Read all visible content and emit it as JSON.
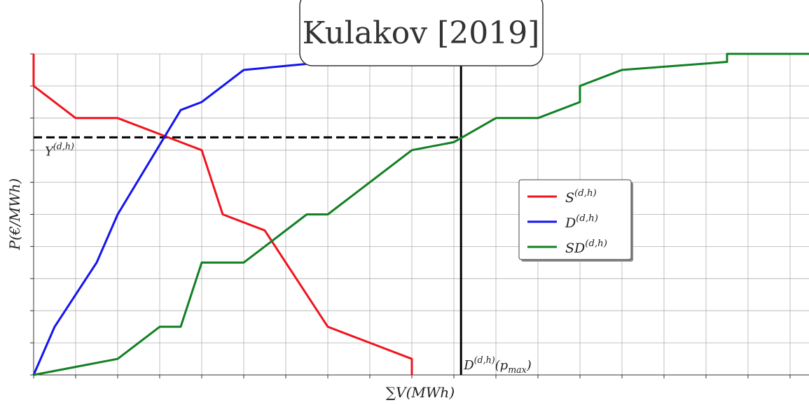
{
  "chart_data": {
    "type": "line",
    "title": "Kulakov [2019]",
    "xlabel": "∑V(MWh)",
    "ylabel": "P(€/MWh)",
    "xlim": [
      0,
      18.45
    ],
    "ylim": [
      0,
      10
    ],
    "xticks": [
      0,
      1,
      2,
      3,
      4,
      5,
      6,
      7,
      8,
      9,
      10,
      11,
      12,
      13,
      14,
      15,
      16,
      17,
      18
    ],
    "yticks": [
      0,
      1,
      2,
      3,
      4,
      5,
      6,
      7,
      8,
      9,
      10
    ],
    "grid": true,
    "legend": "center right",
    "series": [
      {
        "name": "S^(d,h)",
        "color": "#f0141e",
        "x": [
          0,
          0,
          1,
          2,
          4,
          4.5,
          5.5,
          7,
          9,
          9
        ],
        "values": [
          10,
          9,
          8,
          8,
          7,
          5,
          4.5,
          1.5,
          0.5,
          0
        ]
      },
      {
        "name": "D^(d,h)",
        "color": "#1414f0",
        "x": [
          0,
          0.5,
          1.5,
          2,
          3.5,
          4,
          5,
          7
        ],
        "values": [
          0,
          1.5,
          3.5,
          5,
          8.25,
          8.5,
          9.5,
          9.75
        ]
      },
      {
        "name": "SD^(d,h)",
        "color": "#128024",
        "x": [
          0,
          2,
          3,
          3.5,
          4,
          5,
          6.5,
          7,
          9,
          10,
          11,
          12,
          13,
          13,
          14,
          16.5,
          16.5,
          18.45
        ],
        "values": [
          0,
          0.5,
          1.5,
          1.5,
          3.5,
          3.5,
          5,
          5,
          7,
          7.25,
          8,
          8,
          8.5,
          9,
          9.5,
          9.75,
          10,
          10
        ]
      }
    ],
    "hline": {
      "y": 7.4,
      "xmax": 10.1,
      "label": "Y^(d,h)"
    },
    "vline": {
      "x": 10.17,
      "label": "D^(d,h)(p_max)"
    }
  }
}
